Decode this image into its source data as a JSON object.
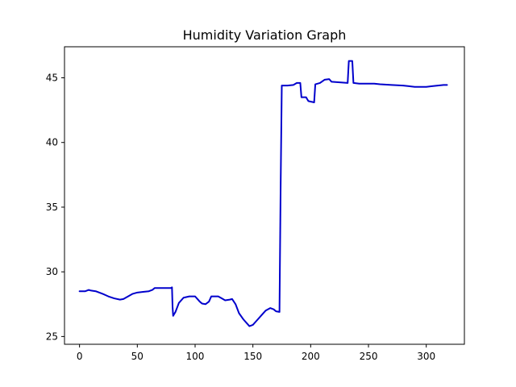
{
  "chart_data": {
    "type": "line",
    "title": "Humidity Variation Graph",
    "xlabel": "",
    "ylabel": "",
    "xlim": [
      -13,
      333
    ],
    "ylim": [
      24.4,
      47.4
    ],
    "xticks": [
      0,
      50,
      100,
      150,
      200,
      250,
      300
    ],
    "yticks": [
      25,
      30,
      35,
      40,
      45
    ],
    "grid": false,
    "legend": "none",
    "series": [
      {
        "name": "Humidity",
        "color": "#0000cc",
        "points": [
          [
            0,
            28.5
          ],
          [
            5,
            28.5
          ],
          [
            8,
            28.6
          ],
          [
            10,
            28.55
          ],
          [
            14,
            28.5
          ],
          [
            17,
            28.4
          ],
          [
            20,
            28.3
          ],
          [
            25,
            28.1
          ],
          [
            30,
            27.95
          ],
          [
            35,
            27.85
          ],
          [
            38,
            27.9
          ],
          [
            42,
            28.1
          ],
          [
            46,
            28.3
          ],
          [
            50,
            28.4
          ],
          [
            55,
            28.45
          ],
          [
            60,
            28.5
          ],
          [
            63,
            28.6
          ],
          [
            65,
            28.75
          ],
          [
            70,
            28.75
          ],
          [
            75,
            28.75
          ],
          [
            79,
            28.75
          ],
          [
            80,
            28.8
          ],
          [
            80.5,
            27.3
          ],
          [
            81,
            26.6
          ],
          [
            83,
            26.9
          ],
          [
            86,
            27.6
          ],
          [
            90,
            28.0
          ],
          [
            95,
            28.1
          ],
          [
            100,
            28.1
          ],
          [
            102,
            27.9
          ],
          [
            104,
            27.7
          ],
          [
            106,
            27.55
          ],
          [
            109,
            27.5
          ],
          [
            112,
            27.7
          ],
          [
            114,
            28.1
          ],
          [
            120,
            28.1
          ],
          [
            123,
            27.95
          ],
          [
            126,
            27.8
          ],
          [
            130,
            27.85
          ],
          [
            132,
            27.9
          ],
          [
            135,
            27.5
          ],
          [
            138,
            26.8
          ],
          [
            142,
            26.3
          ],
          [
            145,
            26.0
          ],
          [
            147,
            25.8
          ],
          [
            150,
            25.9
          ],
          [
            153,
            26.2
          ],
          [
            157,
            26.6
          ],
          [
            161,
            27.0
          ],
          [
            165,
            27.2
          ],
          [
            168,
            27.1
          ],
          [
            170,
            26.95
          ],
          [
            173,
            26.9
          ],
          [
            174,
            36.5
          ],
          [
            175,
            44.4
          ],
          [
            180,
            44.4
          ],
          [
            185,
            44.45
          ],
          [
            188,
            44.6
          ],
          [
            191,
            44.6
          ],
          [
            192,
            43.5
          ],
          [
            196,
            43.5
          ],
          [
            198,
            43.2
          ],
          [
            203,
            43.1
          ],
          [
            204,
            44.5
          ],
          [
            208,
            44.6
          ],
          [
            212,
            44.85
          ],
          [
            216,
            44.9
          ],
          [
            218,
            44.7
          ],
          [
            225,
            44.65
          ],
          [
            232,
            44.6
          ],
          [
            233,
            46.3
          ],
          [
            236,
            46.3
          ],
          [
            237,
            44.6
          ],
          [
            242,
            44.55
          ],
          [
            250,
            44.55
          ],
          [
            255,
            44.55
          ],
          [
            260,
            44.5
          ],
          [
            270,
            44.45
          ],
          [
            280,
            44.4
          ],
          [
            285,
            44.35
          ],
          [
            290,
            44.3
          ],
          [
            300,
            44.3
          ],
          [
            305,
            44.35
          ],
          [
            310,
            44.4
          ],
          [
            315,
            44.45
          ],
          [
            318,
            44.45
          ]
        ]
      }
    ]
  }
}
